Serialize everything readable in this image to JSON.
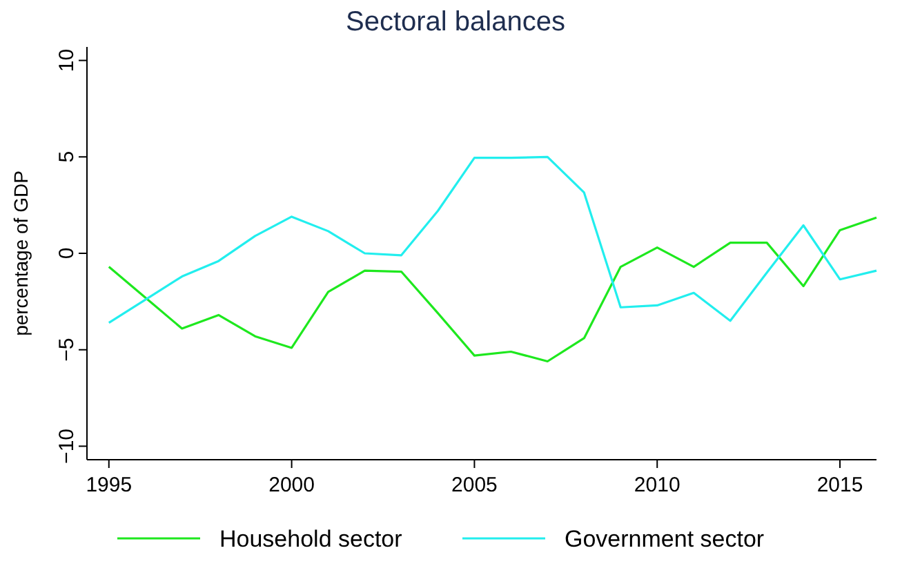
{
  "chart_data": {
    "type": "line",
    "title": "Sectoral balances",
    "ylabel": "percentage of GDP",
    "x": [
      1995,
      1996,
      1997,
      1998,
      1999,
      2000,
      2001,
      2002,
      2003,
      2004,
      2005,
      2006,
      2007,
      2008,
      2009,
      2010,
      2011,
      2012,
      2013,
      2014,
      2015,
      2016
    ],
    "series": [
      {
        "name": "Household sector",
        "color": "#1ee81e",
        "values": [
          -0.7,
          -2.3,
          -3.9,
          -3.2,
          -4.3,
          -4.9,
          -2.0,
          -0.9,
          -0.95,
          -3.1,
          -5.3,
          -5.1,
          -5.6,
          -4.4,
          -0.7,
          0.3,
          -0.7,
          0.55,
          0.55,
          -1.7,
          1.2,
          1.85
        ]
      },
      {
        "name": "Government sector",
        "color": "#22eeee",
        "values": [
          -3.6,
          -2.4,
          -1.2,
          -0.4,
          0.9,
          1.9,
          1.15,
          0.0,
          -0.1,
          2.2,
          4.95,
          4.95,
          5.0,
          3.15,
          -2.8,
          -2.7,
          -2.05,
          -3.5,
          -1.0,
          1.45,
          -1.35,
          -0.9
        ]
      }
    ],
    "xlim": [
      1994.4,
      2016
    ],
    "xticks": [
      1995,
      2000,
      2005,
      2010,
      2015
    ],
    "ylim": [
      -10.7,
      10.7
    ],
    "yticks": [
      {
        "value": -10,
        "label": "−10"
      },
      {
        "value": -5,
        "label": "−5"
      },
      0,
      5,
      10
    ],
    "grid": false,
    "legend": "bottom",
    "marker": "none",
    "line_style": "solid"
  }
}
